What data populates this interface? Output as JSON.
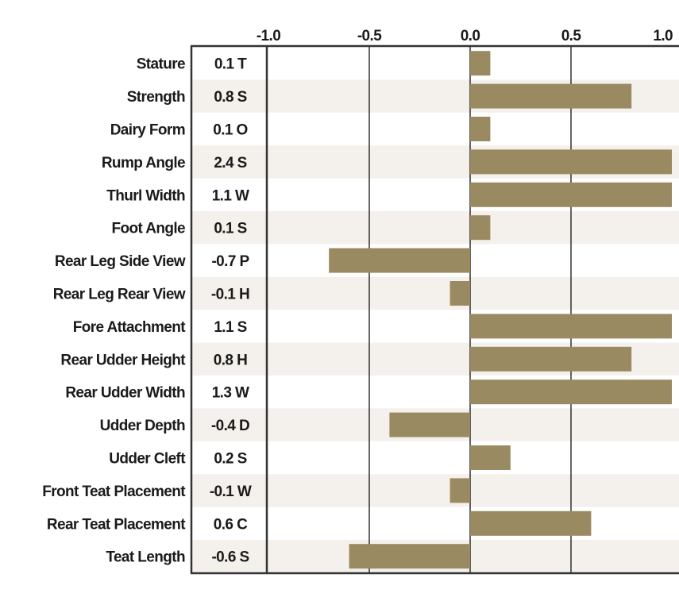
{
  "chart_data": {
    "type": "bar",
    "orientation": "horizontal",
    "xlim": [
      -1.0,
      1.0
    ],
    "x_ticks": [
      -1.0,
      -0.5,
      0.0,
      0.5,
      1.0
    ],
    "x_tick_labels": [
      "-1.0",
      "-0.5",
      "0.0",
      "0.5",
      "1.0"
    ],
    "categories": [
      "Stature",
      "Strength",
      "Dairy Form",
      "Rump Angle",
      "Thurl Width",
      "Foot Angle",
      "Rear Leg Side View",
      "Rear Leg Rear View",
      "Fore Attachment",
      "Rear Udder Height",
      "Rear Udder Width",
      "Udder Depth",
      "Udder Cleft",
      "Front Teat Placement",
      "Rear Teat Placement",
      "Teat Length"
    ],
    "value_labels": [
      "0.1 T",
      "0.8 S",
      "0.1 O",
      "2.4 S",
      "1.1 W",
      "0.1 S",
      "-0.7 P",
      "-0.1 H",
      "1.1 S",
      "0.8 H",
      "1.3 W",
      "-0.4 D",
      "0.2 S",
      "-0.1 W",
      "0.6 C",
      "-0.6 S"
    ],
    "values": [
      0.1,
      0.8,
      0.1,
      2.4,
      1.1,
      0.1,
      -0.7,
      -0.1,
      1.1,
      0.8,
      1.3,
      -0.4,
      0.2,
      -0.1,
      0.6,
      -0.6
    ],
    "bar_color": "#9a8a62",
    "stripe_color": "#f4f1ec",
    "grid_color": "#000000"
  }
}
